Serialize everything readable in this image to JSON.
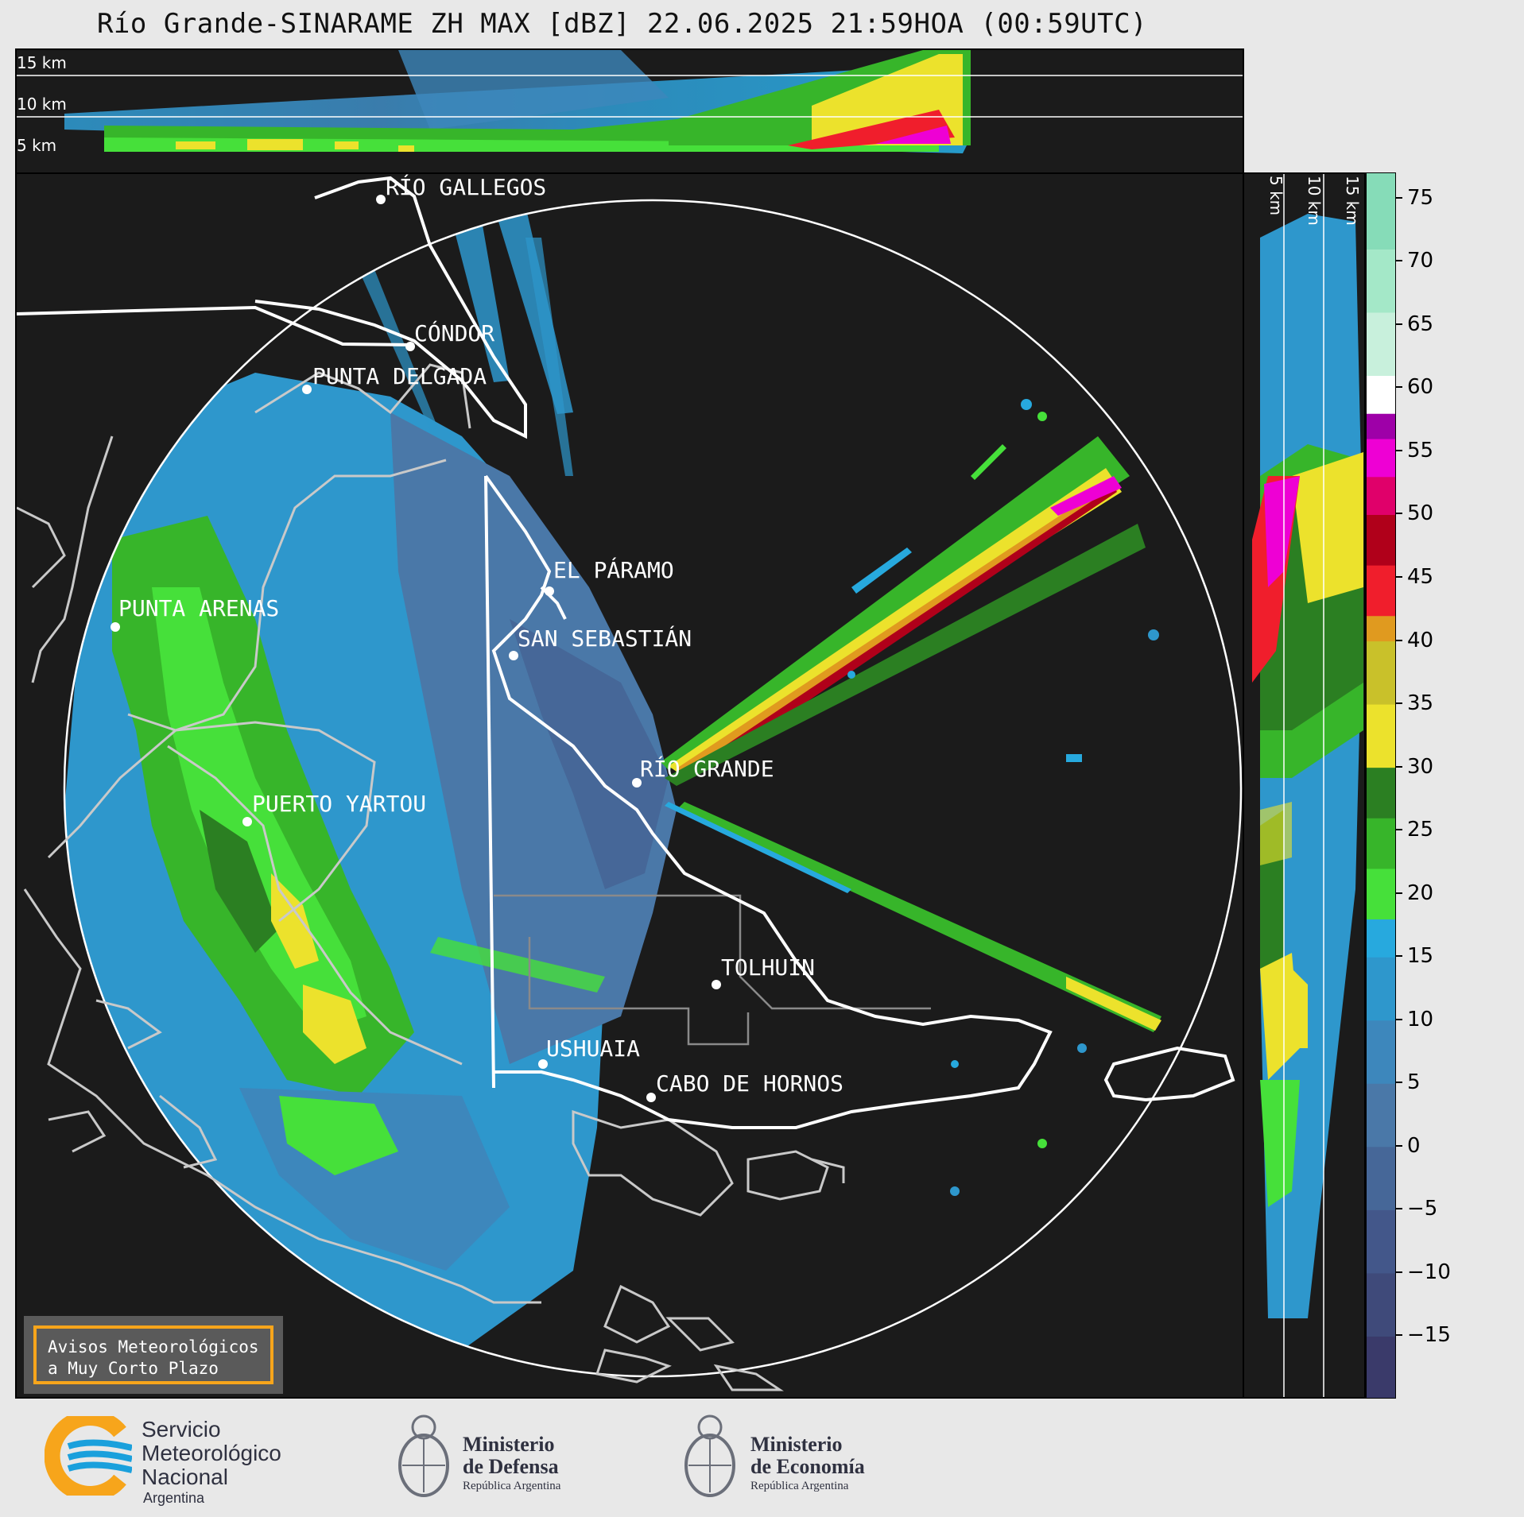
{
  "title": "Río Grande-SINARAME ZH MAX [dBZ] 22.06.2025 21:59HOA (00:59UTC)",
  "top_panel": {
    "height_labels": [
      "15 km",
      "10 km",
      "5 km"
    ]
  },
  "side_panel": {
    "height_labels": [
      "5 km",
      "10 km",
      "15 km"
    ]
  },
  "colorbar": {
    "ticks": [
      "75",
      "70",
      "65",
      "60",
      "55",
      "50",
      "45",
      "40",
      "35",
      "30",
      "25",
      "20",
      "15",
      "10",
      "5",
      "0",
      "−5",
      "−10",
      "−15"
    ],
    "tick_values": [
      75,
      70,
      65,
      60,
      55,
      50,
      45,
      40,
      35,
      30,
      25,
      20,
      15,
      10,
      5,
      0,
      -5,
      -10,
      -15
    ],
    "range": [
      -20,
      77
    ],
    "stops": [
      {
        "from": -20,
        "to": -15,
        "color": "#3a3a6a"
      },
      {
        "from": -15,
        "to": -10,
        "color": "#3f4a7a"
      },
      {
        "from": -10,
        "to": -5,
        "color": "#43578a"
      },
      {
        "from": -5,
        "to": 0,
        "color": "#466798"
      },
      {
        "from": 0,
        "to": 5,
        "color": "#4a78a8"
      },
      {
        "from": 5,
        "to": 10,
        "color": "#3d87bc"
      },
      {
        "from": 10,
        "to": 15,
        "color": "#2e97cc"
      },
      {
        "from": 15,
        "to": 18,
        "color": "#27a9de"
      },
      {
        "from": 18,
        "to": 22,
        "color": "#46e03a"
      },
      {
        "from": 22,
        "to": 26,
        "color": "#37b52a"
      },
      {
        "from": 26,
        "to": 30,
        "color": "#2b7f22"
      },
      {
        "from": 30,
        "to": 35,
        "color": "#ece22c"
      },
      {
        "from": 35,
        "to": 40,
        "color": "#c9c12a"
      },
      {
        "from": 40,
        "to": 42,
        "color": "#e09a1f"
      },
      {
        "from": 42,
        "to": 46,
        "color": "#f01e2c"
      },
      {
        "from": 46,
        "to": 50,
        "color": "#b0001a"
      },
      {
        "from": 50,
        "to": 53,
        "color": "#e0006a"
      },
      {
        "from": 53,
        "to": 56,
        "color": "#ee00d4"
      },
      {
        "from": 56,
        "to": 58,
        "color": "#9e00a8"
      },
      {
        "from": 58,
        "to": 61,
        "color": "#ffffff"
      },
      {
        "from": 61,
        "to": 66,
        "color": "#c8f0dc"
      },
      {
        "from": 66,
        "to": 71,
        "color": "#a4e8c8"
      },
      {
        "from": 71,
        "to": 77,
        "color": "#86dcb8"
      }
    ]
  },
  "map": {
    "places": [
      {
        "name": "RÍO GALLEGOS"
      },
      {
        "name": "CÓNDOR"
      },
      {
        "name": "PUNTA DELGADA"
      },
      {
        "name": "EL PÁRAMO"
      },
      {
        "name": "PUNTA ARENAS"
      },
      {
        "name": "SAN SEBASTIÁN"
      },
      {
        "name": "RÍO GRANDE"
      },
      {
        "name": "PUERTO YARTOU"
      },
      {
        "name": "TOLHUIN"
      },
      {
        "name": "USHUAIA"
      },
      {
        "name": "CABO DE HORNOS"
      }
    ]
  },
  "warning_box": {
    "line1": "Avisos Meteorológicos",
    "line2": "a Muy Corto Plazo"
  },
  "logos": {
    "smn": [
      "Servicio",
      "Meteorológico",
      "Nacional",
      "Argentina"
    ],
    "defensa": [
      "Ministerio",
      "de Defensa",
      "República Argentina"
    ],
    "economia": [
      "Ministerio",
      "de Economía",
      "República Argentina"
    ]
  },
  "colors": {
    "panel_bg": "#1b1b1b",
    "smn_yellow": "#f7a51b",
    "smn_blue": "#1aa0dc",
    "warn_border": "#f7a51b"
  }
}
